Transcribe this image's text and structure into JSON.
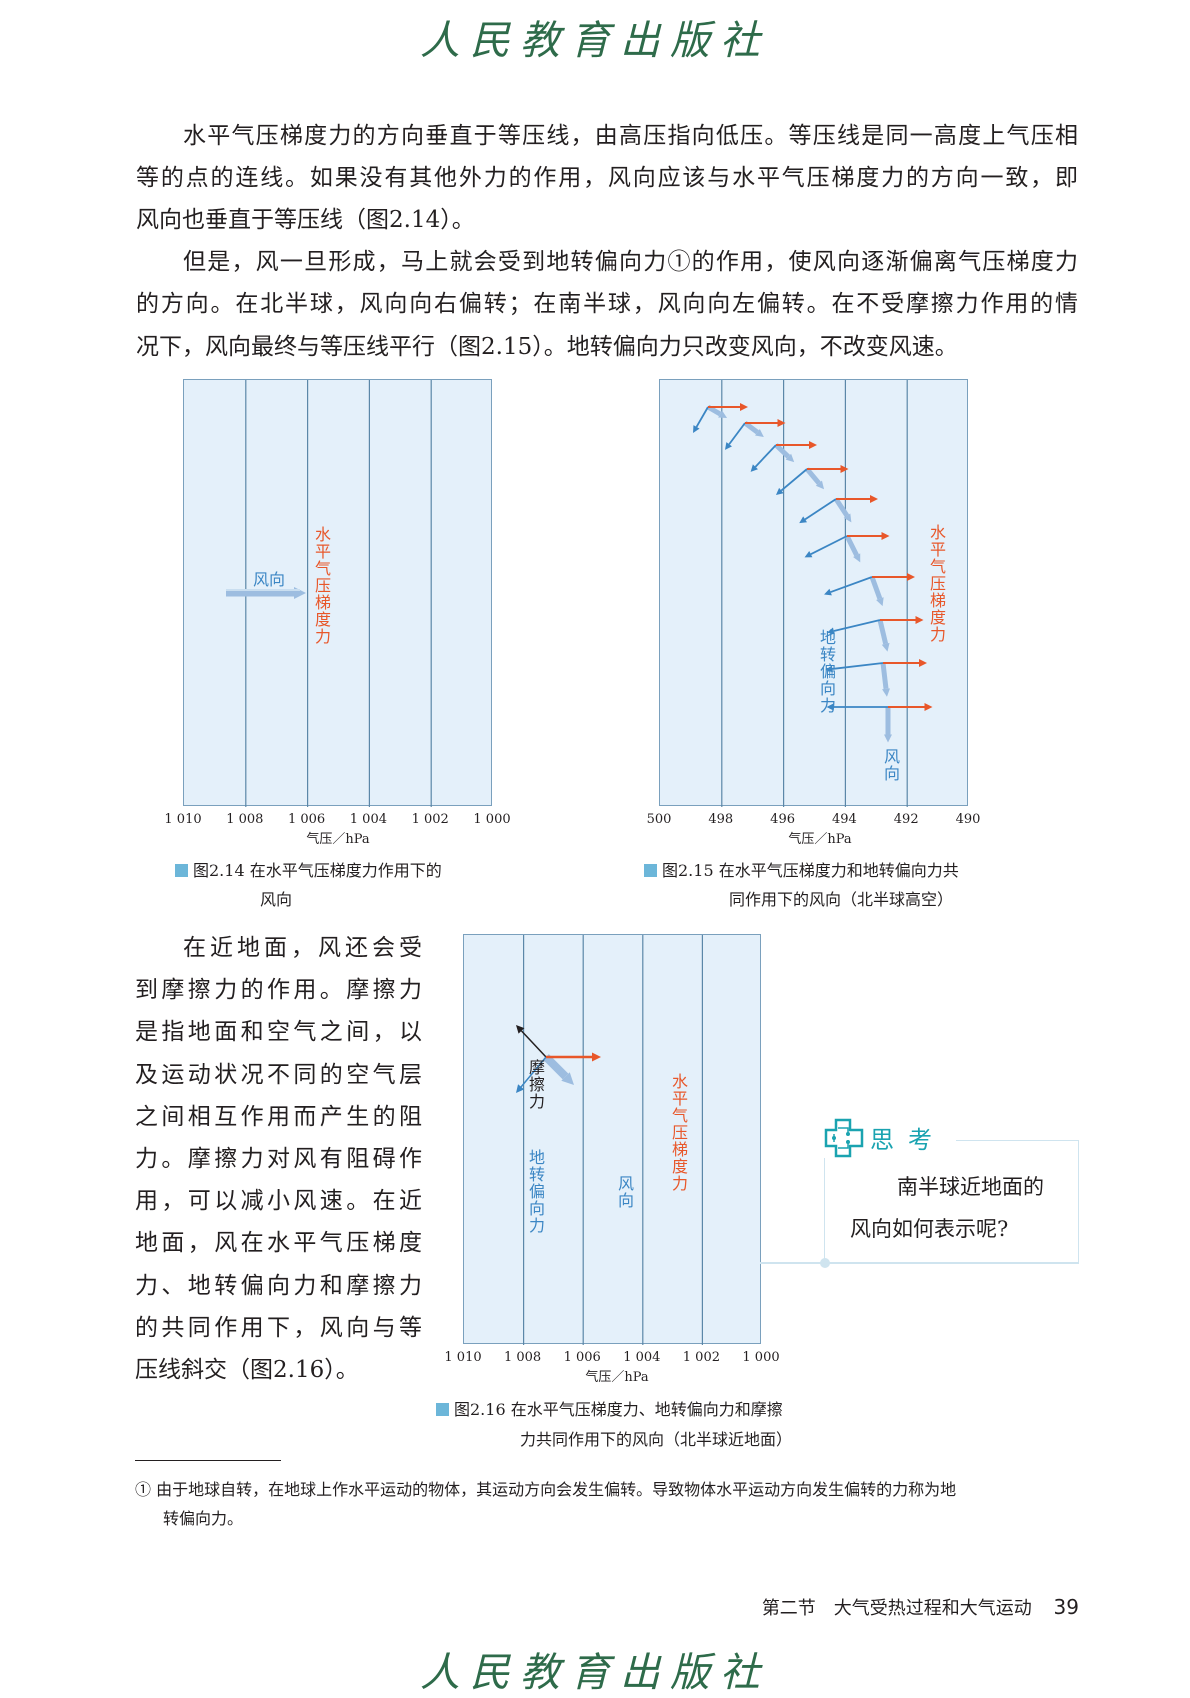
{
  "header_logo": "人民教育出版社",
  "footer_logo": "人民教育出版社",
  "body_lines": [
    "水平气压梯度力的方向垂直于等压线，由高压指向低压。等压线是同一高度上气压相",
    "等的点的连线。如果没有其他外力的作用，风向应该与水平气压梯度力的方向一致，即",
    "风向也垂直于等压线（图2.14）。",
    "但是，风一旦形成，马上就会受到地转偏向力①的作用，使风向逐渐偏离气压梯度力",
    "的方向。在北半球，风向向右偏转；在南半球，风向向左偏转。在不受摩擦力作用的情",
    "况下，风向最终与等压线平行（图2.15）。地转偏向力只改变风向，不改变风速。"
  ],
  "side_lines": [
    "在近地面，风还会受",
    "到摩擦力的作用。摩擦力",
    "是指地面和空气之间，以",
    "及运动状况不同的空气层",
    "之间相互作用而产生的阻",
    "力。摩擦力对风有阻碍作",
    "用，可以减小风速。在近",
    "地面，风在水平气压梯度",
    "力、地转偏向力和摩擦力",
    "的共同作用下，风向与等",
    "压线斜交（图2.16）。"
  ],
  "colors": {
    "pressure_gradient": "#e8572a",
    "coriolis": "#3b86c4",
    "wind": "#9dbde0",
    "friction": "#231f20",
    "isobar_fill": "#e4f0fa",
    "accent": "#1aa3b0"
  },
  "fig214": {
    "ticks": [
      "1 010",
      "1 008",
      "1 006",
      "1 004",
      "1 002",
      "1 000"
    ],
    "axis_label": "气压／hPa",
    "wind_label": "风向",
    "pgf_label": "水平气压梯度力",
    "caption_line1": "图2.14  在水平气压梯度力作用下的",
    "caption_line2": "风向"
  },
  "fig215": {
    "ticks": [
      "500",
      "498",
      "496",
      "494",
      "492",
      "490"
    ],
    "axis_label": "气压／hPa",
    "pgf_label": "水平气压梯度力",
    "coriolis_label": "地转偏向力",
    "wind_label": "风向",
    "caption_line1": "图2.15  在水平气压梯度力和地转偏向力共",
    "caption_line2": "同作用下的风向（北半球高空）"
  },
  "fig216": {
    "ticks": [
      "1 010",
      "1 008",
      "1 006",
      "1 004",
      "1 002",
      "1 000"
    ],
    "axis_label": "气压／hPa",
    "friction_label": "摩擦力",
    "coriolis_label": "地转偏向力",
    "wind_label": "风向",
    "pgf_label": "水平气压梯度力",
    "caption_line1": "图2.16  在水平气压梯度力、地转偏向力和摩擦",
    "caption_line2": "力共同作用下的风向（北半球近地面）"
  },
  "think": {
    "icon": "think-puzzle-icon",
    "title": "思考",
    "line1": "南半球近地面的",
    "line2": "风向如何表示呢?"
  },
  "footnote": {
    "line1": "① 由于地球自转，在地球上作水平运动的物体，其运动方向会发生偏转。导致物体水平运动方向发生偏转的力称为地",
    "line2": "转偏向力。"
  },
  "footer": {
    "section": "第二节　大气受热过程和大气运动",
    "page_number": "39"
  }
}
